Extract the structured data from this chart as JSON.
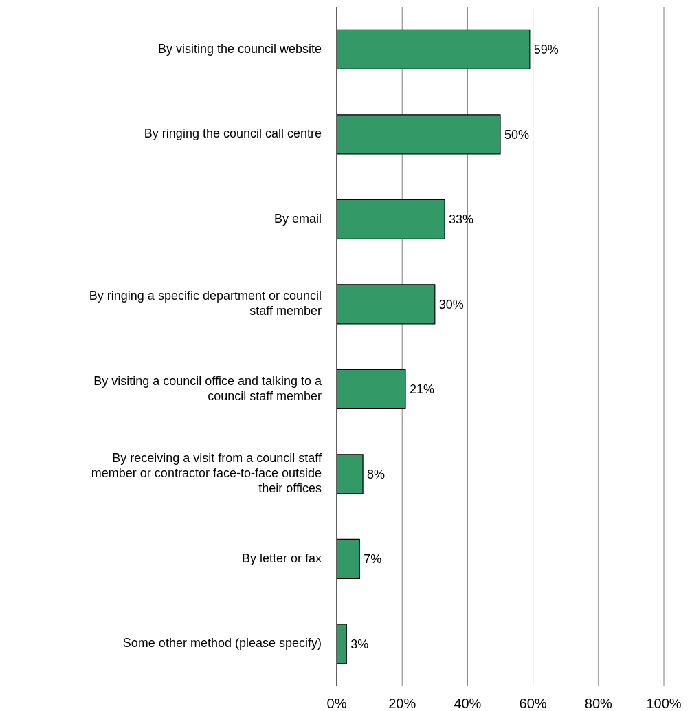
{
  "chart_data": {
    "type": "bar",
    "orientation": "horizontal",
    "categories": [
      "By visiting the council website",
      "By ringing the council call centre",
      "By email",
      "By ringing a specific department or council staff member",
      "By visiting a council office and talking to a council staff member",
      "By receiving a visit from a council staff member or contractor face-to-face outside their offices",
      "By letter or fax",
      "Some other method (please specify)"
    ],
    "values": [
      59,
      50,
      33,
      30,
      21,
      8,
      7,
      3
    ],
    "value_labels": [
      "59%",
      "50%",
      "33%",
      "30%",
      "21%",
      "8%",
      "7%",
      "3%"
    ],
    "color": "#339966",
    "xlim": [
      0,
      100
    ],
    "xticks": [
      {
        "value": 0,
        "label": "0%"
      },
      {
        "value": 20,
        "label": "20%"
      },
      {
        "value": 40,
        "label": "40%"
      },
      {
        "value": 60,
        "label": "60%"
      },
      {
        "value": 80,
        "label": "80%"
      },
      {
        "value": 100,
        "label": "100%"
      }
    ],
    "grid": "x"
  }
}
